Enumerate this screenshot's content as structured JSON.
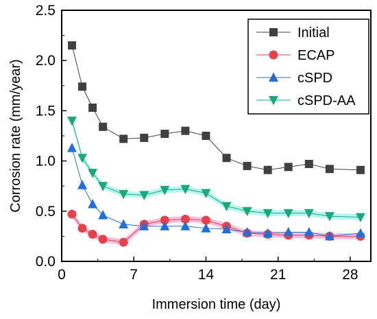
{
  "chart_data": {
    "type": "line",
    "xlabel": "Immersion time (day)",
    "ylabel": "Corrosion rate (mm/year)",
    "xlim": [
      0,
      30
    ],
    "ylim": [
      0,
      2.5
    ],
    "xticks": [
      "0",
      "7",
      "14",
      "21",
      "28"
    ],
    "yticks": [
      "0.0",
      "0.5",
      "1.0",
      "1.5",
      "2.0",
      "2.5"
    ],
    "grid": false,
    "legend_position": "top-right",
    "series": [
      {
        "name": "Initial",
        "color": "#404040",
        "marker": "square",
        "x": [
          1,
          2,
          3,
          4,
          6,
          8,
          10,
          12,
          14,
          16,
          18,
          20,
          22,
          24,
          26,
          29
        ],
        "values": [
          2.15,
          1.74,
          1.53,
          1.34,
          1.22,
          1.23,
          1.27,
          1.3,
          1.25,
          1.03,
          0.95,
          0.91,
          0.94,
          0.97,
          0.92,
          0.91
        ]
      },
      {
        "name": "ECAP",
        "color": "#e8414a",
        "marker": "circle",
        "x": [
          1,
          2,
          3,
          4,
          6,
          8,
          10,
          12,
          14,
          16,
          18,
          20,
          22,
          24,
          26,
          29
        ],
        "values": [
          0.47,
          0.33,
          0.27,
          0.22,
          0.19,
          0.37,
          0.41,
          0.42,
          0.41,
          0.35,
          0.28,
          0.27,
          0.26,
          0.26,
          0.25,
          0.25
        ]
      },
      {
        "name": "cSPD",
        "color": "#1f6fe0",
        "marker": "triangle-up",
        "x": [
          1,
          2,
          3,
          4,
          6,
          8,
          10,
          12,
          14,
          16,
          18,
          20,
          22,
          24,
          26,
          29
        ],
        "values": [
          1.13,
          0.76,
          0.57,
          0.46,
          0.37,
          0.35,
          0.35,
          0.35,
          0.33,
          0.32,
          0.29,
          0.28,
          0.29,
          0.29,
          0.25,
          0.28
        ]
      },
      {
        "name": "cSPD-AA",
        "color": "#1aaa7a",
        "marker": "triangle-down",
        "x": [
          1,
          2,
          3,
          4,
          6,
          8,
          10,
          12,
          14,
          16,
          18,
          20,
          22,
          24,
          26,
          29
        ],
        "values": [
          1.4,
          1.03,
          0.88,
          0.75,
          0.67,
          0.66,
          0.71,
          0.72,
          0.68,
          0.55,
          0.5,
          0.48,
          0.48,
          0.48,
          0.45,
          0.44
        ]
      }
    ],
    "shaded_bands": [
      {
        "series": "ECAP",
        "color": "#f7b3d7",
        "half_width": 0.03
      },
      {
        "series": "cSPD-AA",
        "color": "#a9f3f0",
        "half_width": 0.03
      }
    ]
  }
}
